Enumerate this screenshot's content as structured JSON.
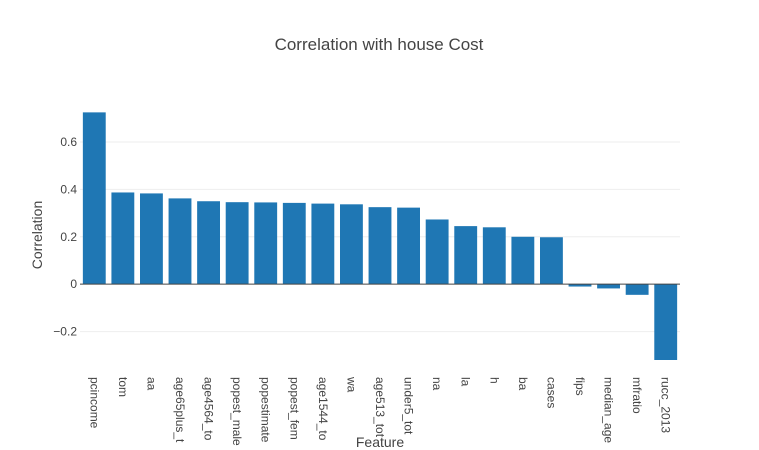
{
  "chart_data": {
    "type": "bar",
    "title": "Correlation with house Cost",
    "xlabel": "Feature",
    "ylabel": "Correlation",
    "ylim": [
      -0.32,
      0.735
    ],
    "yticks": [
      -0.2,
      0,
      0.2,
      0.4,
      0.6
    ],
    "ytick_labels": [
      "−0.2",
      "0",
      "0.2",
      "0.4",
      "0.6"
    ],
    "grid": true,
    "bar_color": "#1f77b4",
    "categories": [
      "pcincome",
      "tom",
      "aa",
      "age65plus_t",
      "age4564_to",
      "popest_male",
      "popestimate",
      "popest_fem",
      "age1544_to",
      "wa",
      "age513_tot",
      "under5_tot",
      "na",
      "la",
      "h",
      "ba",
      "cases",
      "fips",
      "median_age",
      "mfratio",
      "rucc_2013"
    ],
    "values": [
      0.725,
      0.387,
      0.383,
      0.362,
      0.35,
      0.346,
      0.345,
      0.343,
      0.34,
      0.337,
      0.325,
      0.323,
      0.273,
      0.245,
      0.24,
      0.2,
      0.198,
      -0.01,
      -0.018,
      -0.045,
      -0.32
    ]
  }
}
